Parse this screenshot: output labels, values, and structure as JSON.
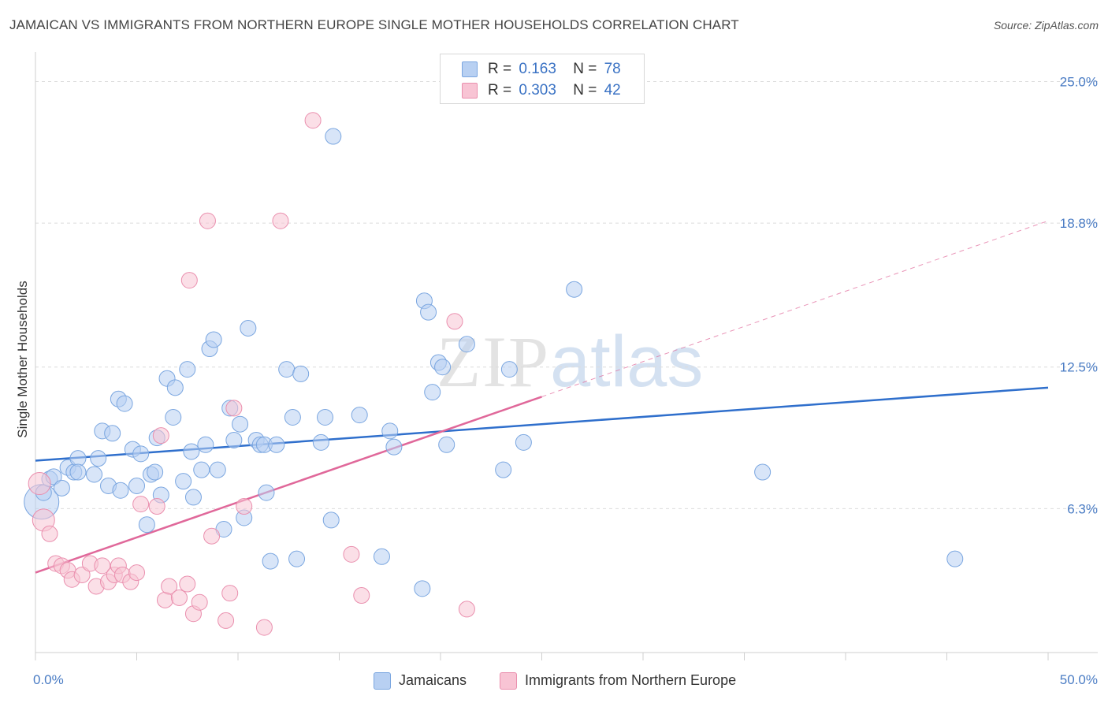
{
  "title": "JAMAICAN VS IMMIGRANTS FROM NORTHERN EUROPE SINGLE MOTHER HOUSEHOLDS CORRELATION CHART",
  "source": "Source: ZipAtlas.com",
  "watermark": {
    "zip": "ZIP",
    "atlas": "atlas"
  },
  "colors": {
    "blue_fill": "#b8d0f2",
    "blue_stroke": "#7aa6e0",
    "blue_line": "#2f6fcc",
    "pink_fill": "#f8c4d4",
    "pink_stroke": "#ea8fae",
    "pink_line": "#e0689a",
    "grid": "#dcdcdc",
    "tick_text": "#4a7cc4"
  },
  "stats": [
    {
      "r_label": "R =",
      "r_value": "0.163",
      "n_label": "N =",
      "n_value": "78"
    },
    {
      "r_label": "R =",
      "r_value": "0.303",
      "n_label": "N =",
      "n_value": "42"
    }
  ],
  "legend": [
    {
      "label": "Jamaicans"
    },
    {
      "label": "Immigrants from Northern Europe"
    }
  ],
  "chart_data": {
    "type": "scatter",
    "title": "JAMAICAN VS IMMIGRANTS FROM NORTHERN EUROPE SINGLE MOTHER HOUSEHOLDS CORRELATION CHART",
    "xlabel": "",
    "ylabel": "Single Mother Households",
    "xlim": [
      0,
      50
    ],
    "ylim": [
      0,
      26.5
    ],
    "x_tick_labels": [
      "0.0%",
      "50.0%"
    ],
    "y_ticks": [
      6.3,
      12.5,
      18.8,
      25.0
    ],
    "y_tick_labels": [
      "6.3%",
      "12.5%",
      "18.8%",
      "25.0%"
    ],
    "grid": "horizontal dashed",
    "legend_placement": "bottom-center",
    "series": [
      {
        "name": "Jamaicans",
        "color": "#b8d0f2",
        "trend": {
          "x": [
            0,
            50
          ],
          "y": [
            8.4,
            11.6
          ],
          "style": "solid"
        },
        "points": [
          [
            0.3,
            6.6,
            22
          ],
          [
            0.4,
            7.0,
            10
          ],
          [
            0.7,
            7.6,
            10
          ],
          [
            0.9,
            7.7,
            10
          ],
          [
            1.3,
            7.2,
            10
          ],
          [
            1.6,
            8.1,
            10
          ],
          [
            1.9,
            7.9,
            10
          ],
          [
            2.1,
            8.5,
            10
          ],
          [
            2.9,
            7.8,
            10
          ],
          [
            2.1,
            7.9,
            10
          ],
          [
            3.1,
            8.5,
            10
          ],
          [
            3.3,
            9.7,
            10
          ],
          [
            3.8,
            9.6,
            10
          ],
          [
            3.6,
            7.3,
            10
          ],
          [
            4.1,
            11.1,
            10
          ],
          [
            4.4,
            10.9,
            10
          ],
          [
            4.2,
            7.1,
            10
          ],
          [
            4.8,
            8.9,
            10
          ],
          [
            5.0,
            7.3,
            10
          ],
          [
            5.2,
            8.7,
            10
          ],
          [
            5.5,
            5.6,
            10
          ],
          [
            5.7,
            7.8,
            10
          ],
          [
            5.9,
            7.9,
            10
          ],
          [
            6.0,
            9.4,
            10
          ],
          [
            6.2,
            6.9,
            10
          ],
          [
            6.5,
            12.0,
            10
          ],
          [
            6.8,
            10.3,
            10
          ],
          [
            6.9,
            11.6,
            10
          ],
          [
            7.3,
            7.5,
            10
          ],
          [
            7.5,
            12.4,
            10
          ],
          [
            7.7,
            8.8,
            10
          ],
          [
            7.8,
            6.8,
            10
          ],
          [
            8.2,
            8.0,
            10
          ],
          [
            8.4,
            9.1,
            10
          ],
          [
            8.6,
            13.3,
            10
          ],
          [
            8.8,
            13.7,
            10
          ],
          [
            9.0,
            8.0,
            10
          ],
          [
            9.3,
            5.4,
            10
          ],
          [
            9.6,
            10.7,
            10
          ],
          [
            9.8,
            9.3,
            10
          ],
          [
            10.1,
            10.0,
            10
          ],
          [
            10.3,
            5.9,
            10
          ],
          [
            10.5,
            14.2,
            10
          ],
          [
            10.9,
            9.3,
            10
          ],
          [
            11.1,
            9.1,
            10
          ],
          [
            11.3,
            9.1,
            10
          ],
          [
            11.4,
            7.0,
            10
          ],
          [
            11.6,
            4.0,
            10
          ],
          [
            11.9,
            9.1,
            10
          ],
          [
            12.4,
            12.4,
            10
          ],
          [
            12.7,
            10.3,
            10
          ],
          [
            12.9,
            4.1,
            10
          ],
          [
            13.1,
            12.2,
            10
          ],
          [
            14.1,
            9.2,
            10
          ],
          [
            14.3,
            10.3,
            10
          ],
          [
            14.6,
            5.8,
            10
          ],
          [
            14.7,
            22.6,
            10
          ],
          [
            16.0,
            10.4,
            10
          ],
          [
            17.1,
            4.2,
            10
          ],
          [
            17.5,
            9.7,
            10
          ],
          [
            17.7,
            9.0,
            10
          ],
          [
            19.1,
            2.8,
            10
          ],
          [
            19.2,
            15.4,
            10
          ],
          [
            19.4,
            14.9,
            10
          ],
          [
            19.6,
            11.4,
            10
          ],
          [
            19.9,
            12.7,
            10
          ],
          [
            20.1,
            12.5,
            10
          ],
          [
            20.3,
            9.1,
            10
          ],
          [
            21.3,
            13.5,
            10
          ],
          [
            23.1,
            8.0,
            10
          ],
          [
            23.4,
            12.4,
            10
          ],
          [
            24.1,
            9.2,
            10
          ],
          [
            26.6,
            15.9,
            10
          ],
          [
            35.9,
            7.9,
            10
          ],
          [
            45.4,
            4.1,
            10
          ]
        ]
      },
      {
        "name": "Immigrants from Northern Europe",
        "color": "#f8c4d4",
        "trend": {
          "x": [
            0,
            25
          ],
          "y": [
            3.5,
            11.2
          ],
          "style": "solid",
          "extended_to": [
            50,
            18.9
          ],
          "extended_style": "dashed"
        },
        "points": [
          [
            0.2,
            7.4,
            14
          ],
          [
            0.4,
            5.8,
            14
          ],
          [
            0.7,
            5.2,
            10
          ],
          [
            1.0,
            3.9,
            10
          ],
          [
            1.3,
            3.8,
            10
          ],
          [
            1.6,
            3.6,
            10
          ],
          [
            1.8,
            3.2,
            10
          ],
          [
            2.3,
            3.4,
            10
          ],
          [
            2.7,
            3.9,
            10
          ],
          [
            3.0,
            2.9,
            10
          ],
          [
            3.3,
            3.8,
            10
          ],
          [
            3.6,
            3.1,
            10
          ],
          [
            3.9,
            3.4,
            10
          ],
          [
            4.1,
            3.8,
            10
          ],
          [
            4.3,
            3.4,
            10
          ],
          [
            4.7,
            3.1,
            10
          ],
          [
            5.0,
            3.5,
            10
          ],
          [
            5.2,
            6.5,
            10
          ],
          [
            6.0,
            6.4,
            10
          ],
          [
            6.2,
            9.5,
            10
          ],
          [
            6.4,
            2.3,
            10
          ],
          [
            6.6,
            2.9,
            10
          ],
          [
            7.1,
            2.4,
            10
          ],
          [
            7.5,
            3.0,
            10
          ],
          [
            7.6,
            16.3,
            10
          ],
          [
            7.8,
            1.7,
            10
          ],
          [
            8.1,
            2.2,
            10
          ],
          [
            8.5,
            18.9,
            10
          ],
          [
            8.7,
            5.1,
            10
          ],
          [
            9.4,
            1.4,
            10
          ],
          [
            9.6,
            2.6,
            10
          ],
          [
            9.8,
            10.7,
            10
          ],
          [
            10.3,
            6.4,
            10
          ],
          [
            11.3,
            1.1,
            10
          ],
          [
            12.1,
            18.9,
            10
          ],
          [
            13.7,
            23.3,
            10
          ],
          [
            15.6,
            4.3,
            10
          ],
          [
            16.1,
            2.5,
            10
          ],
          [
            20.7,
            14.5,
            10
          ],
          [
            21.3,
            1.9,
            10
          ]
        ]
      }
    ]
  }
}
